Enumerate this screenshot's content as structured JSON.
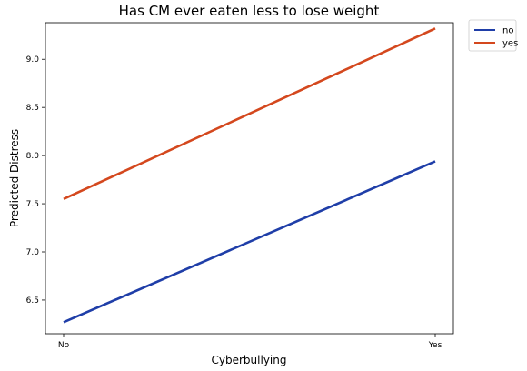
{
  "chart_data": {
    "type": "line",
    "title": "Has CM ever eaten less to lose weight",
    "xlabel": "Cyberbullying",
    "ylabel": "Predicted Distress",
    "categories": [
      "No",
      "Yes"
    ],
    "ylim": [
      6.15,
      9.38
    ],
    "yticks": [
      "6.5",
      "7.0",
      "7.5",
      "8.0",
      "8.5",
      "9.0"
    ],
    "grid": false,
    "legend_position": "outside-top-right",
    "series": [
      {
        "name": "no",
        "values": [
          6.27,
          7.94
        ],
        "color": "#1f3ea8"
      },
      {
        "name": "yes",
        "values": [
          7.55,
          9.32
        ],
        "color": "#d4481e"
      }
    ]
  }
}
